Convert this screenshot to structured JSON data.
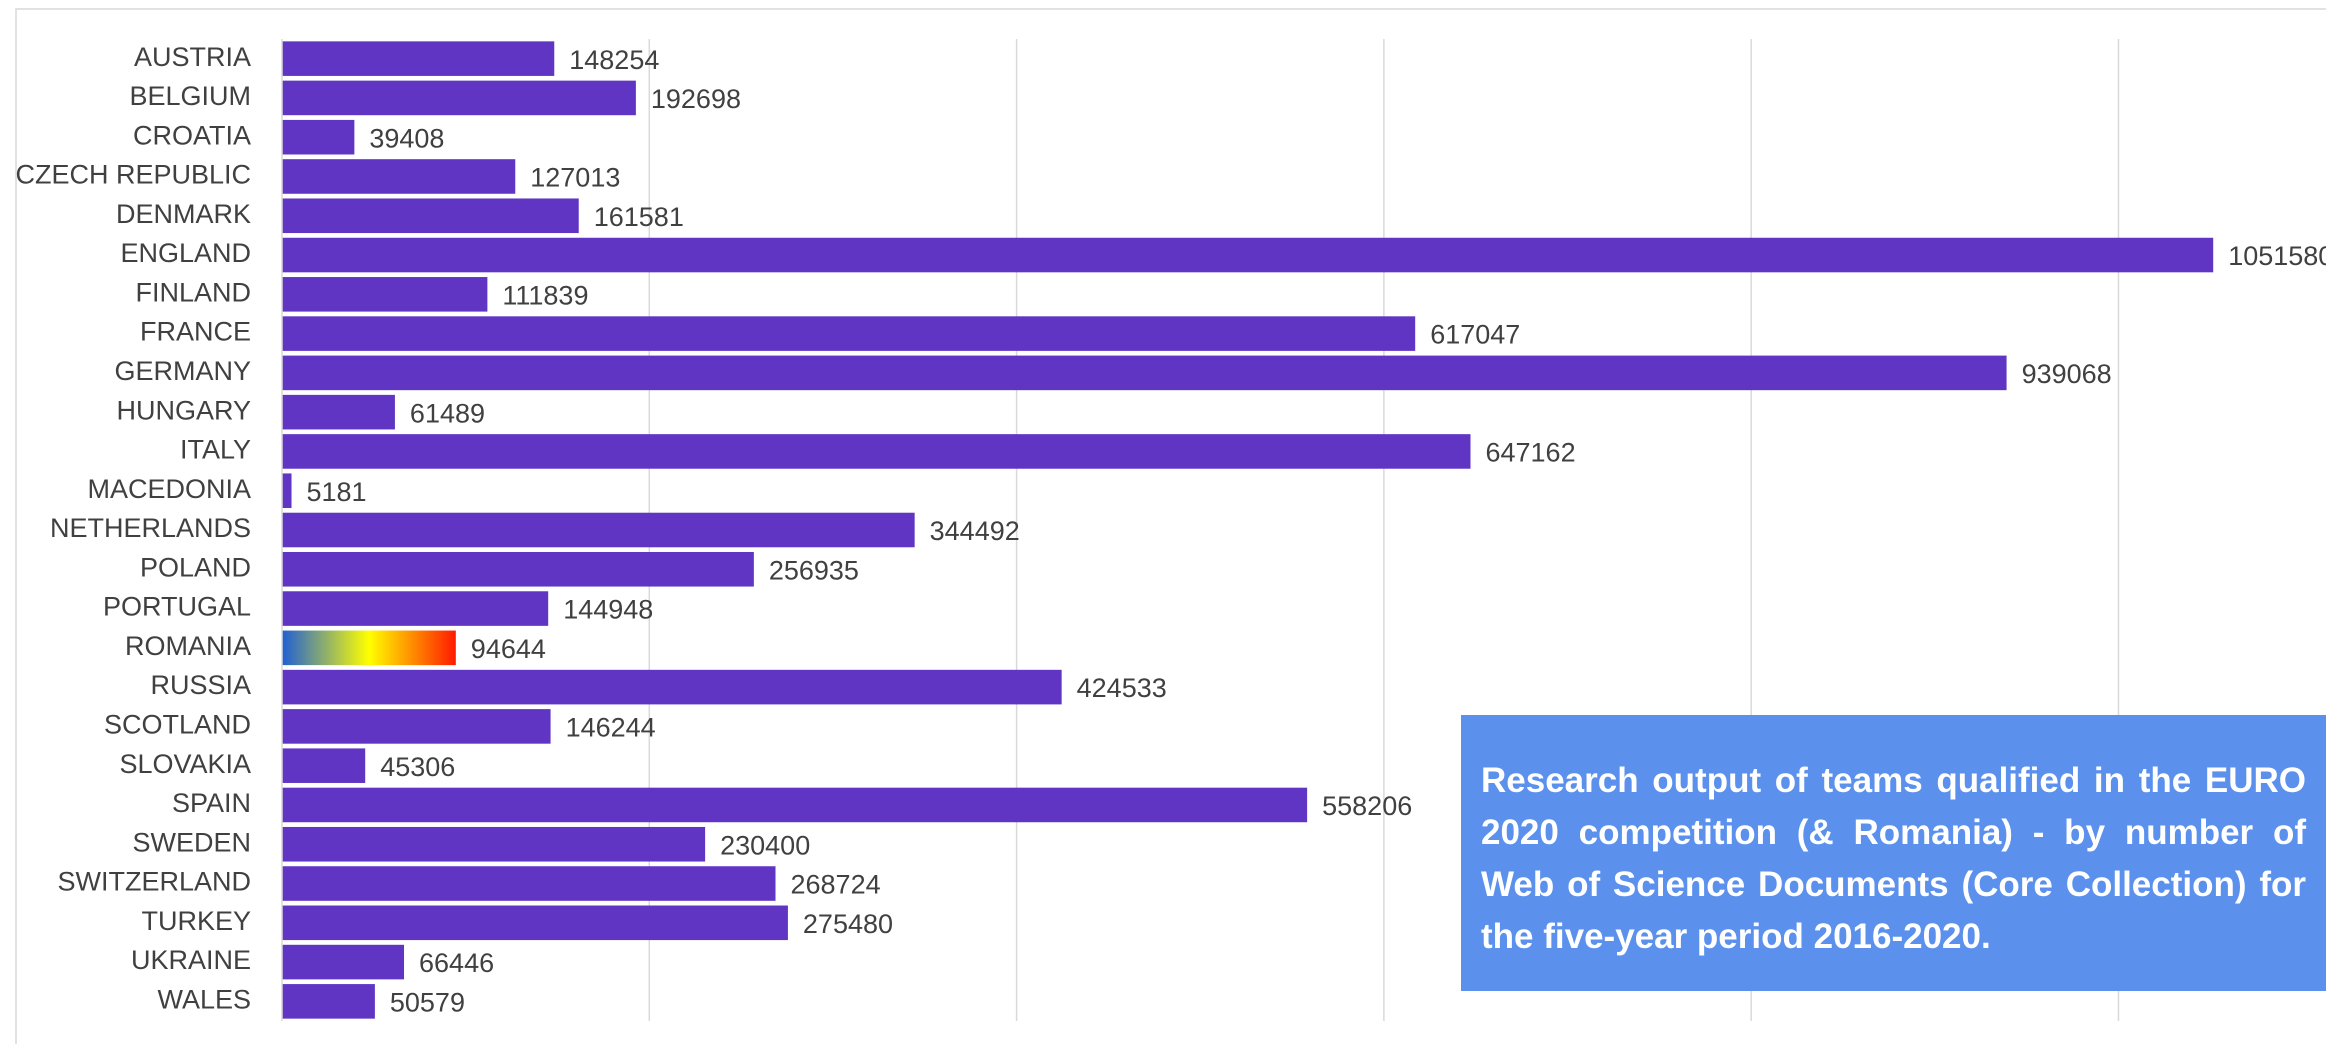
{
  "chart_data": {
    "type": "barh",
    "title": "Research output of teams qualified in the EURO 2020 competition (& Romania) - by number of Web of Science Documents (Core Collection) for the five-year period 2016-2020.",
    "categories": [
      "AUSTRIA",
      "BELGIUM",
      "CROATIA",
      "CZECH REPUBLIC",
      "DENMARK",
      "ENGLAND",
      "FINLAND",
      "FRANCE",
      "GERMANY",
      "HUNGARY",
      "ITALY",
      "MACEDONIA",
      "NETHERLANDS",
      "POLAND",
      "PORTUGAL",
      "ROMANIA",
      "RUSSIA",
      "SCOTLAND",
      "SLOVAKIA",
      "SPAIN",
      "SWEDEN",
      "SWITZERLAND",
      "TURKEY",
      "UKRAINE",
      "WALES"
    ],
    "values": [
      148254,
      192698,
      39408,
      127013,
      161581,
      1051580,
      111839,
      617047,
      939068,
      61489,
      647162,
      5181,
      344492,
      256935,
      144948,
      94644,
      424533,
      146244,
      45306,
      558206,
      230400,
      268724,
      275480,
      66446,
      50579
    ],
    "color": "#6035c3",
    "highlight_category": "ROMANIA",
    "highlight_gradient": [
      "#1f5fd6",
      "#ffff00",
      "#ff1a00"
    ],
    "xlim": [
      0,
      1113000
    ],
    "xticks": [
      0,
      200000,
      400000,
      600000,
      800000,
      1000000
    ],
    "grid": true
  }
}
